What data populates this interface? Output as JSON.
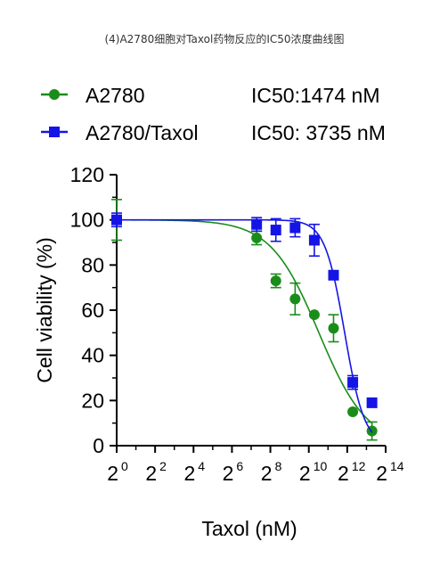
{
  "chart_data": {
    "type": "scatter",
    "title": "(4)A2780细胞对Taxol药物反应的IC50浓度曲线图",
    "xlabel": "Taxol (nM)",
    "ylabel": "Cell viability (%)",
    "x_scale": "log2",
    "xlim_log2": [
      0,
      14
    ],
    "x_ticks": [
      {
        "base": "2",
        "exp": "0"
      },
      {
        "base": "2",
        "exp": "2"
      },
      {
        "base": "2",
        "exp": "4"
      },
      {
        "base": "2",
        "exp": "6"
      },
      {
        "base": "2",
        "exp": "8"
      },
      {
        "base": "2",
        "exp": "10"
      },
      {
        "base": "2",
        "exp": "12"
      },
      {
        "base": "2",
        "exp": "14"
      }
    ],
    "ylim": [
      0,
      120
    ],
    "y_ticks": [
      "0",
      "20",
      "40",
      "60",
      "80",
      "100",
      "120"
    ],
    "grid": false,
    "legend_position": "top",
    "series": [
      {
        "name": "A2780",
        "ic50_label": "IC50:1474 nM",
        "color": "#1a8c1a",
        "marker": "circle",
        "ic50_nM": 1474,
        "hill_slope": 1.15,
        "x_nM": [
          1,
          156,
          312,
          625,
          1250,
          2500,
          5000,
          10000
        ],
        "y": [
          100,
          92,
          73,
          65,
          58,
          52,
          15,
          6.5
        ],
        "err": [
          9,
          3,
          3,
          7,
          0,
          6,
          0,
          4
        ]
      },
      {
        "name": "A2780/Taxol",
        "ic50_label": "IC50: 3735 nM",
        "color": "#1414e6",
        "marker": "square",
        "ic50_nM": 3735,
        "hill_slope": 2.8,
        "x_nM": [
          1,
          156,
          312,
          625,
          1250,
          2500,
          5000,
          10000
        ],
        "y": [
          100,
          98,
          95.5,
          96.5,
          91,
          75.5,
          28,
          19
        ],
        "err": [
          3,
          3,
          5,
          4,
          7,
          0,
          3,
          0
        ]
      }
    ]
  }
}
